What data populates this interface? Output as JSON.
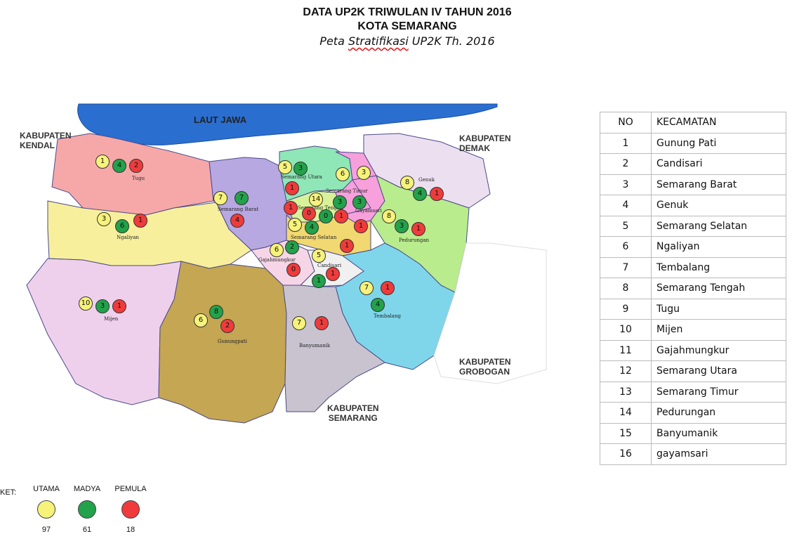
{
  "title": {
    "line1": "DATA UP2K TRIWULAN IV TAHUN 2016",
    "line2": "KOTA SEMARANG",
    "subtitle_pre": "Peta ",
    "subtitle_flag": "Stratifikasi",
    "subtitle_post": " UP2K Th. 2016"
  },
  "map": {
    "sea": "LAUT JAWA",
    "kendal": "KABUPATEN\nKENDAL",
    "demak": "KABUPATEN\nDEMAK",
    "grobogan": "KABUPATEN\nGROBOGAN",
    "semarang": "KABUPATEN\nSEMARANG",
    "district_names": {
      "tugu": "Tugu",
      "ngaliyan": "Ngaliyan",
      "mijen": "Mijen",
      "gunungpati": "Gunungpati",
      "semarang_barat": "Semarang Barat",
      "semarang_utara": "Semarang Utara",
      "semarang_timur": "Semarang Timur",
      "gayamsari": "Gayamsari",
      "genuk": "Genuk",
      "pedurungan": "Pedurungan",
      "semarang_tengah": "Semarang Tengah",
      "semarang_selatan": "Semarang Selatan",
      "gajahmungkur": "Gajahmungkur",
      "candisari": "Candisari",
      "tembalang": "Tembalang",
      "banyumanik": "Banyumanik"
    },
    "markers": {
      "tugu": [
        "1",
        "4",
        "2"
      ],
      "ngaliyan": [
        "3",
        "6",
        "1"
      ],
      "mijen": [
        "10",
        "3",
        "1"
      ],
      "gunungpati": [
        "6",
        "8",
        "2"
      ],
      "semarang_barat": [
        "7",
        "7",
        "4"
      ],
      "semarang_utara": [
        "5",
        "3",
        "1"
      ],
      "semarang_tengah": [
        "0",
        "0",
        "1"
      ],
      "semarang_timur": [
        "6",
        "3",
        "3",
        "3",
        "1"
      ],
      "genuk": [
        "8",
        "4",
        "1"
      ],
      "pedurungan": [
        "8",
        "3",
        "1"
      ],
      "semarang_selatan": [
        "5",
        "4",
        "1"
      ],
      "gajahmungkur": [
        "6",
        "2",
        "0"
      ],
      "candisari": [
        "5",
        "1",
        "1"
      ],
      "tembalang": [
        "7",
        "1",
        "4"
      ],
      "banyumanik": [
        "7",
        "1"
      ],
      "center": [
        "14",
        "1"
      ]
    }
  },
  "table": {
    "headers": [
      "NO",
      "KECAMATAN"
    ],
    "rows": [
      [
        "1",
        "Gunung Pati"
      ],
      [
        "2",
        "Candisari"
      ],
      [
        "3",
        "Semarang Barat"
      ],
      [
        "4",
        "Genuk"
      ],
      [
        "5",
        "Semarang Selatan"
      ],
      [
        "6",
        "Ngaliyan"
      ],
      [
        "7",
        "Tembalang"
      ],
      [
        "8",
        "Semarang Tengah"
      ],
      [
        "9",
        "Tugu"
      ],
      [
        "10",
        "Mijen"
      ],
      [
        "11",
        "Gajahmungkur"
      ],
      [
        "12",
        "Semarang Utara"
      ],
      [
        "13",
        "Semarang Timur"
      ],
      [
        "14",
        "Pedurungan"
      ],
      [
        "15",
        "Banyumanik"
      ],
      [
        "16",
        "gayamsari"
      ]
    ]
  },
  "legend": {
    "label": "KET:",
    "items": [
      {
        "name": "UTAMA",
        "color": "#f7f27a",
        "count": "97"
      },
      {
        "name": "MADYA",
        "color": "#22a24a",
        "count": "61"
      },
      {
        "name": "PEMULA",
        "color": "#ef3b3b",
        "count": "18"
      }
    ]
  },
  "colors": {
    "sea": "#2a6ed0",
    "tugu": "#f6a8a8",
    "ngaliyan": "#f7ef9c",
    "mijen": "#efd0ec",
    "gunungpati": "#c4a653",
    "semarang_barat": "#b7a8e2",
    "banyumanik": "#c9c3cf",
    "tembalang": "#7fd6ea",
    "pedurungan": "#b9ec8c",
    "genuk": "#ece0f0",
    "semarang_utara": "#8fe6b6",
    "semarang_timur": "#f7a0dc",
    "semarang_tengah": "#d8f29a",
    "semarang_selatan": "#f2d870",
    "gajahmungkur": "#f6d6e6",
    "candisari": "#f0f0f0"
  }
}
